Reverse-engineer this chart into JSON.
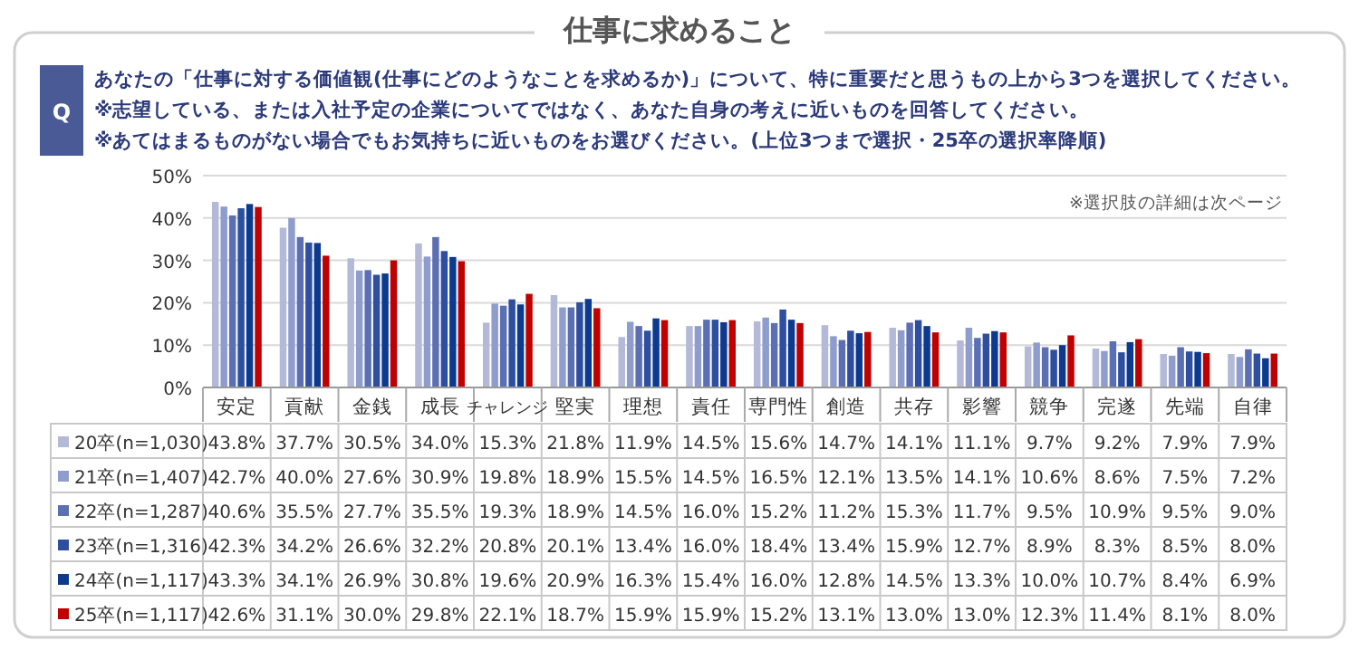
{
  "chart_data": {
    "type": "bar",
    "title": "仕事に求めること",
    "subtitle": "あなたの「仕事に対する価値観(仕事にどのようなことを求めるか)」について、特に重要だと思うもの上から3つを選択してください。\n※志望している、または入社予定の企業についてではなく、あなた自身の考えに近いものを回答してください。\n※あてはまるものがない場合でもお気持ちに近いものをお選びください。(上位3つまで選択・25卒の選択率降順)",
    "annotations": [
      "Q",
      "※選択肢の詳細は次ページ"
    ],
    "categories": [
      "安定",
      "貢献",
      "金銭",
      "成長",
      "チャレンジ",
      "堅実",
      "理想",
      "責任",
      "専門性",
      "創造",
      "共存",
      "影響",
      "競争",
      "完遂",
      "先端",
      "自律"
    ],
    "ylim": [
      0,
      50
    ],
    "yticks": [
      {
        "value": 0,
        "label": "0%"
      },
      {
        "value": 10,
        "label": "10%"
      },
      {
        "value": 20,
        "label": "20%"
      },
      {
        "value": 30,
        "label": "30%"
      },
      {
        "value": 40,
        "label": "40%"
      },
      {
        "value": 50,
        "label": "50%"
      }
    ],
    "grid": "y",
    "legend": "bottom",
    "series": [
      {
        "name": "20卒(n=1,030)",
        "color": "#b3b9d6",
        "values": [
          43.8,
          37.7,
          30.5,
          34.0,
          15.3,
          21.8,
          11.9,
          14.5,
          15.6,
          14.7,
          14.1,
          11.1,
          9.7,
          9.2,
          7.9,
          7.9
        ],
        "value_labels": [
          "43.8%",
          "37.7%",
          "30.5%",
          "34.0%",
          "15.3%",
          "21.8%",
          "11.9%",
          "14.5%",
          "15.6%",
          "14.7%",
          "14.1%",
          "11.1%",
          "9.7%",
          "9.2%",
          "7.9%",
          "7.9%"
        ]
      },
      {
        "name": "21卒(n=1,407)",
        "color": "#8f9dcc",
        "values": [
          42.7,
          40.0,
          27.6,
          30.9,
          19.8,
          18.9,
          15.5,
          14.5,
          16.5,
          12.1,
          13.5,
          14.1,
          10.6,
          8.6,
          7.5,
          7.2
        ],
        "value_labels": [
          "42.7%",
          "40.0%",
          "27.6%",
          "30.9%",
          "19.8%",
          "18.9%",
          "15.5%",
          "14.5%",
          "16.5%",
          "12.1%",
          "13.5%",
          "14.1%",
          "10.6%",
          "8.6%",
          "7.5%",
          "7.2%"
        ]
      },
      {
        "name": "22卒(n=1,287)",
        "color": "#5b6fb3",
        "values": [
          40.6,
          35.5,
          27.7,
          35.5,
          19.3,
          18.9,
          14.5,
          16.0,
          15.2,
          11.2,
          15.3,
          11.7,
          9.5,
          10.9,
          9.5,
          9.0
        ],
        "value_labels": [
          "40.6%",
          "35.5%",
          "27.7%",
          "35.5%",
          "19.3%",
          "18.9%",
          "14.5%",
          "16.0%",
          "15.2%",
          "11.2%",
          "15.3%",
          "11.7%",
          "9.5%",
          "10.9%",
          "9.5%",
          "9.0%"
        ]
      },
      {
        "name": "23卒(n=1,316)",
        "color": "#2e4f9e",
        "values": [
          42.3,
          34.2,
          26.6,
          32.2,
          20.8,
          20.1,
          13.4,
          16.0,
          18.4,
          13.4,
          15.9,
          12.7,
          8.9,
          8.3,
          8.5,
          8.0
        ],
        "value_labels": [
          "42.3%",
          "34.2%",
          "26.6%",
          "32.2%",
          "20.8%",
          "20.1%",
          "13.4%",
          "16.0%",
          "18.4%",
          "13.4%",
          "15.9%",
          "12.7%",
          "8.9%",
          "8.3%",
          "8.5%",
          "8.0%"
        ]
      },
      {
        "name": "24卒(n=1,117)",
        "color": "#0b3a8e",
        "values": [
          43.3,
          34.1,
          26.9,
          30.8,
          19.6,
          20.9,
          16.3,
          15.4,
          16.0,
          12.8,
          14.5,
          13.3,
          10.0,
          10.7,
          8.4,
          6.9
        ],
        "value_labels": [
          "43.3%",
          "34.1%",
          "26.9%",
          "30.8%",
          "19.6%",
          "20.9%",
          "16.3%",
          "15.4%",
          "16.0%",
          "12.8%",
          "14.5%",
          "13.3%",
          "10.0%",
          "10.7%",
          "8.4%",
          "6.9%"
        ]
      },
      {
        "name": "25卒(n=1,117)",
        "color": "#c00000",
        "values": [
          42.6,
          31.1,
          30.0,
          29.8,
          22.1,
          18.7,
          15.9,
          15.9,
          15.2,
          13.1,
          13.0,
          13.0,
          12.3,
          11.4,
          8.1,
          8.0
        ],
        "value_labels": [
          "42.6%",
          "31.1%",
          "30.0%",
          "29.8%",
          "22.1%",
          "18.7%",
          "15.9%",
          "15.9%",
          "15.2%",
          "13.1%",
          "13.0%",
          "13.0%",
          "12.3%",
          "11.4%",
          "8.1%",
          "8.0%"
        ]
      }
    ]
  }
}
